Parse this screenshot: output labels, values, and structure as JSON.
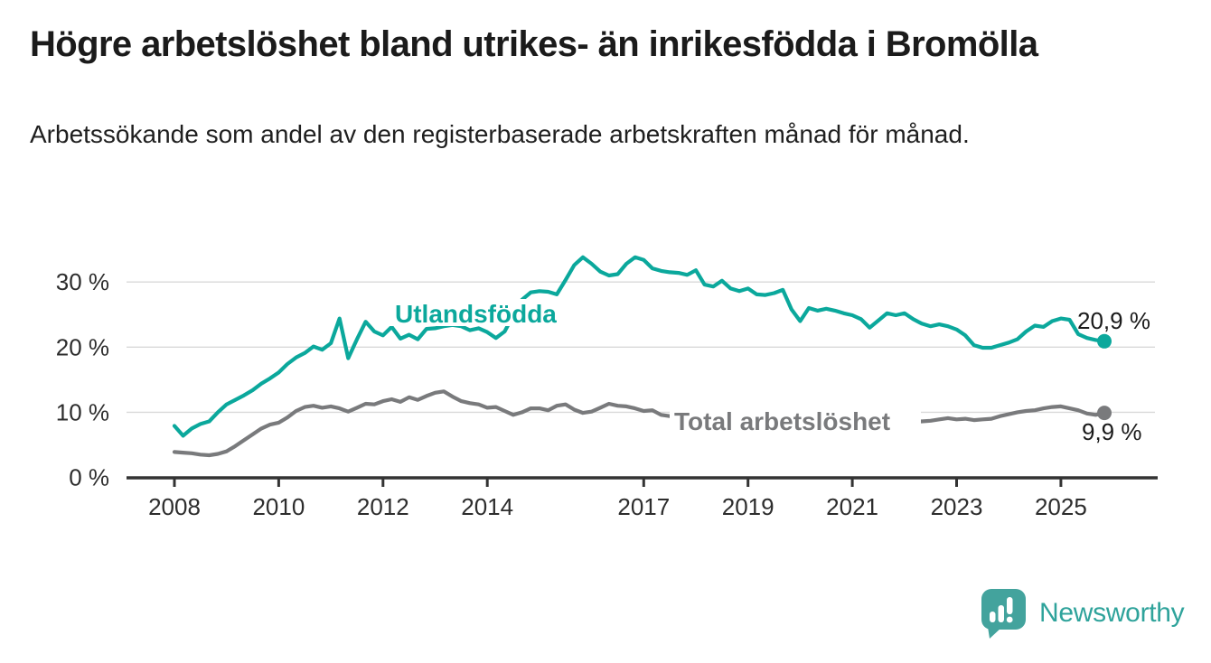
{
  "title": "Högre arbetslöshet bland utrikes- än inrikesfödda i Bromölla",
  "subtitle": "Arbetssökande som andel av den registerbaserade arbetskraften månad för månad.",
  "branding": {
    "logo_text": "Newsworthy"
  },
  "colors": {
    "series_foreign_born": "#0ba89c",
    "series_total": "#797a7c",
    "gridline": "#d9d9d9",
    "axis": "#333333",
    "text": "#1b1b1b",
    "logo": "#43a39d"
  },
  "chart_data": {
    "type": "line",
    "title": "Högre arbetslöshet bland utrikes- än inrikesfödda i Bromölla",
    "subtitle": "Arbetssökande som andel av den registerbaserade arbetskraften månad för månad.",
    "unit": "%",
    "grid": true,
    "x_axis": {
      "tick_years": [
        2008,
        2010,
        2012,
        2014,
        2017,
        2019,
        2021,
        2023,
        2025
      ],
      "tick_labels": [
        "2008",
        "2010",
        "2012",
        "2014",
        "2017",
        "2019",
        "2021",
        "2023",
        "2025"
      ],
      "range_years": [
        2007.1,
        2026.9
      ]
    },
    "y_axis": {
      "ticks": [
        0,
        10,
        20,
        30
      ],
      "tick_labels": [
        "0 %",
        "10 %",
        "20 %",
        "30 %"
      ],
      "ylim": [
        0,
        35.8
      ]
    },
    "series": [
      {
        "name": "Utlandsfödda",
        "color": "#0ba89c",
        "start_year": 2008,
        "points_per_year": 6,
        "end_label": "20,9 %",
        "end_value": 20.9,
        "values": [
          7.9,
          6.4,
          7.5,
          8.2,
          8.6,
          10.0,
          11.2,
          11.9,
          12.6,
          13.4,
          14.4,
          15.2,
          16.1,
          17.4,
          18.4,
          19.1,
          20.1,
          19.6,
          20.6,
          24.4,
          18.3,
          21.2,
          23.9,
          22.4,
          21.8,
          23.1,
          21.3,
          21.9,
          21.2,
          22.8,
          22.9,
          23.2,
          23.4,
          23.2,
          22.6,
          22.9,
          22.3,
          21.4,
          22.4,
          24.9,
          27.3,
          28.4,
          28.6,
          28.5,
          28.1,
          30.3,
          32.6,
          33.8,
          32.8,
          31.6,
          31.0,
          31.2,
          32.8,
          33.8,
          33.4,
          32.1,
          31.7,
          31.5,
          31.4,
          31.1,
          31.8,
          29.6,
          29.3,
          30.2,
          29.0,
          28.6,
          29.0,
          28.1,
          28.0,
          28.3,
          28.8,
          25.8,
          24.0,
          26.0,
          25.6,
          25.9,
          25.6,
          25.2,
          24.9,
          24.3,
          23.0,
          24.1,
          25.2,
          24.9,
          25.2,
          24.3,
          23.6,
          23.2,
          23.5,
          23.2,
          22.7,
          21.8,
          20.3,
          19.9,
          19.9,
          20.3,
          20.7,
          21.2,
          22.4,
          23.3,
          23.1,
          24.0,
          24.4,
          24.2,
          22.0,
          21.4,
          21.1,
          20.9
        ]
      },
      {
        "name": "Total arbetslöshet",
        "color": "#797a7c",
        "start_year": 2008,
        "points_per_year": 6,
        "end_label": "9,9 %",
        "end_value": 9.9,
        "values": [
          3.9,
          3.8,
          3.7,
          3.5,
          3.4,
          3.6,
          4.0,
          4.8,
          5.7,
          6.6,
          7.5,
          8.1,
          8.4,
          9.2,
          10.2,
          10.8,
          11.0,
          10.7,
          10.9,
          10.6,
          10.1,
          10.7,
          11.3,
          11.2,
          11.7,
          12.0,
          11.6,
          12.3,
          11.9,
          12.5,
          13.0,
          13.2,
          12.4,
          11.7,
          11.4,
          11.2,
          10.7,
          10.8,
          10.2,
          9.6,
          10.0,
          10.6,
          10.6,
          10.3,
          11.0,
          11.2,
          10.4,
          9.9,
          10.1,
          10.7,
          11.3,
          11.0,
          10.9,
          10.6,
          10.2,
          10.3,
          9.6,
          9.4,
          9.3,
          9.2,
          9.0,
          8.8,
          8.7,
          8.8,
          8.6,
          8.5,
          8.6,
          8.4,
          8.3,
          8.4,
          8.2,
          8.1,
          8.2,
          8.4,
          8.6,
          8.7,
          8.6,
          8.5,
          8.5,
          8.6,
          8.5,
          8.4,
          8.5,
          8.6,
          8.5,
          8.6,
          8.6,
          8.7,
          8.9,
          9.1,
          8.9,
          9.0,
          8.8,
          8.9,
          9.0,
          9.4,
          9.7,
          10.0,
          10.2,
          10.3,
          10.6,
          10.8,
          10.9,
          10.6,
          10.3,
          9.8,
          9.6,
          9.9
        ]
      }
    ],
    "legend_position": "inline-labels"
  }
}
